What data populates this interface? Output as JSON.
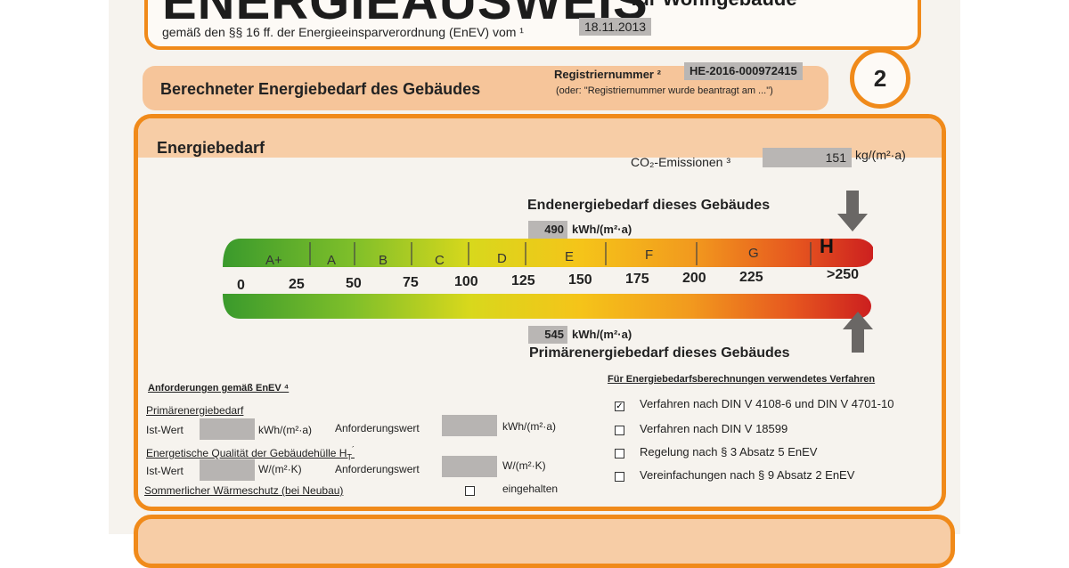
{
  "header": {
    "title": "ENERGIEAUSWEIS",
    "title_suffix": "für Wohngebäude",
    "law_text": "gemäß den §§ 16 ff. der Energieeinsparverordnung (EnEV) vom ¹",
    "law_date": "18.11.2013"
  },
  "section": {
    "title": "Berechneter Energiebedarf des Gebäudes",
    "reg_label": "Registriernummer ²",
    "reg_value": "HE-2016-000972415",
    "reg_note": "(oder: \"Registriernummer wurde beantragt am ...\")",
    "page_number": "2"
  },
  "energiebedarf": {
    "title": "Energiebedarf",
    "co2_label": "CO₂-Emissionen ³",
    "co2_value": "151",
    "co2_unit": "kg/(m²·a)",
    "endenergie_title": "Endenergiebedarf dieses Gebäudes",
    "endenergie_value": "490",
    "endenergie_unit": "kWh/(m²·a)",
    "primaer_title": "Primärenergiebedarf dieses Gebäudes",
    "primaer_value": "545",
    "primaer_unit": "kWh/(m²·a)",
    "classes": [
      "A+",
      "A",
      "B",
      "C",
      "D",
      "E",
      "F",
      "G",
      "H"
    ],
    "ticks": [
      "0",
      "25",
      "50",
      "75",
      "100",
      "125",
      "150",
      "175",
      "200",
      "225",
      ">250"
    ]
  },
  "anforderungen": {
    "heading": "Anforderungen gemäß EnEV ⁴",
    "primaer_label": "Primärenergiebedarf",
    "ist_wert": "Ist-Wert",
    "unit_kwh": "kWh/(m²·a)",
    "anforderungswert": "Anforderungswert",
    "huelle_label": "Energetische Qualität der Gebäudehülle H",
    "huelle_sub": "T",
    "huelle_sup": "´",
    "unit_wmk": "W/(m²·K)",
    "sommer_label": "Sommerlicher Wärmeschutz (bei Neubau)",
    "eingehalten": "eingehalten"
  },
  "verfahren": {
    "heading": "Für Energiebedarfsberechnungen verwendetes Verfahren",
    "items": [
      {
        "label": "Verfahren nach DIN V 4108-6 und DIN V 4701-10",
        "checked": "✓"
      },
      {
        "label": "Verfahren nach DIN V 18599",
        "checked": ""
      },
      {
        "label": "Regelung nach § 3 Absatz 5 EnEV",
        "checked": ""
      },
      {
        "label": "Vereinfachungen nach § 9 Absatz 2 EnEV",
        "checked": ""
      }
    ]
  },
  "colors": {
    "accent": "#f08a1a",
    "header_fill": "#f6c59a",
    "field_gray": "#b9b6b4"
  }
}
